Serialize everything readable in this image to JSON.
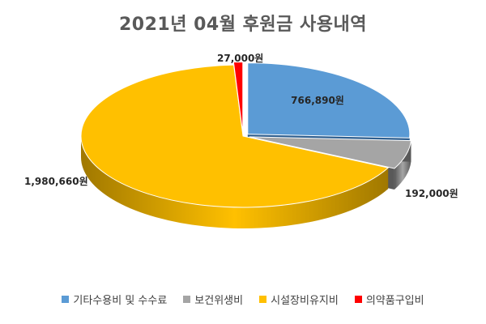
{
  "chart_data": {
    "type": "pie",
    "title": "2021년 04월 후원금 사용내역",
    "slices": [
      {
        "name": "기타수용비 및 수수료",
        "value": 766890,
        "label": "766,890원",
        "color": "#5b9bd5",
        "shade": "#2f5f8f"
      },
      {
        "name": "보건위생비",
        "value": 192000,
        "label": "192,000원",
        "color": "#a5a5a5",
        "shade": "#595959"
      },
      {
        "name": "시설장비유지비",
        "value": 1980660,
        "label": "1,980,660원",
        "color": "#ffc000",
        "shade": "#a07800"
      },
      {
        "name": "의약품구입비",
        "value": 27000,
        "label": "27,000원",
        "color": "#ff0000",
        "shade": "#a00000"
      }
    ],
    "legend_position": "bottom"
  }
}
